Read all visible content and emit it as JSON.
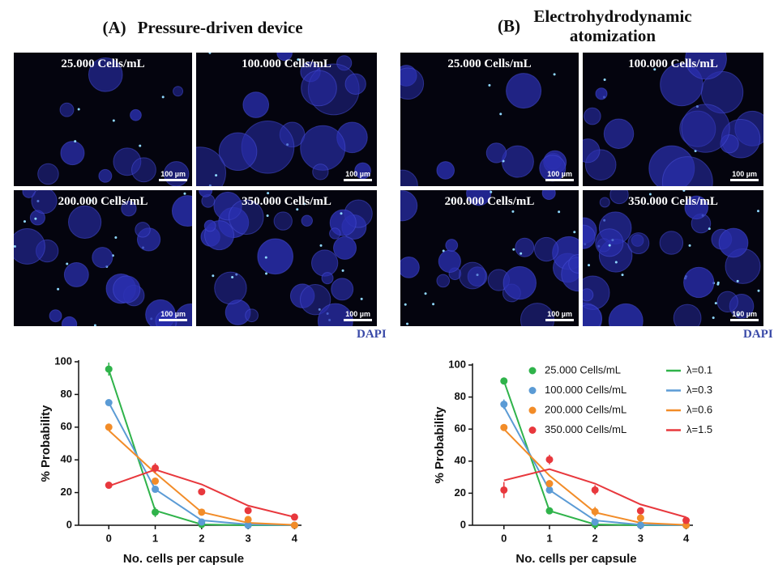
{
  "figure": {
    "panels": [
      {
        "letter": "(A)",
        "title": "Pressure-driven device",
        "images": [
          "25.000 Cells/mL",
          "100.000 Cells/mL",
          "200.000 Cells/mL",
          "350.000 Cells/mL"
        ],
        "scale_bar": "100 µm",
        "stain": "DAPI"
      },
      {
        "letter": "(B)",
        "title": "Electrohydrodynamic atomization",
        "images": [
          "25.000 Cells/mL",
          "100.000 Cells/mL",
          "200.000 Cells/mL",
          "350.000 Cells/mL"
        ],
        "scale_bar": "100 µm",
        "stain": "DAPI"
      }
    ]
  },
  "chart_data": [
    {
      "type": "scatter",
      "xlabel": "No. cells per capsule",
      "ylabel": "% Probability",
      "x": [
        0,
        1,
        2,
        3,
        4
      ],
      "xlim": [
        -0.65,
        4.15
      ],
      "xticks": [
        0,
        1,
        2,
        3,
        4
      ],
      "ylim": [
        0,
        100
      ],
      "yticks": [
        0,
        20,
        40,
        60,
        80,
        100
      ],
      "series": [
        {
          "color": "#2fb34a",
          "values": [
            95.5,
            8,
            0.5,
            0,
            0
          ],
          "errors": [
            4,
            3,
            null,
            null,
            null
          ]
        },
        {
          "color": "#5b9bd5",
          "values": [
            75,
            22,
            2,
            0,
            0
          ],
          "errors": [
            null,
            null,
            null,
            null,
            null
          ]
        },
        {
          "color": "#f28c28",
          "values": [
            60,
            27,
            8,
            3.5,
            0
          ],
          "errors": [
            null,
            null,
            null,
            null,
            null
          ]
        },
        {
          "color": "#e8383d",
          "values": [
            24.5,
            35,
            20.5,
            9,
            5
          ],
          "errors": [
            2,
            3,
            null,
            null,
            null
          ]
        }
      ],
      "fits": [
        {
          "color": "#2fb34a",
          "values": [
            95,
            9,
            0.5,
            0,
            0
          ]
        },
        {
          "color": "#5b9bd5",
          "values": [
            75,
            22,
            3,
            0.5,
            0
          ]
        },
        {
          "color": "#f28c28",
          "values": [
            58,
            32,
            8,
            1.5,
            0.2
          ]
        },
        {
          "color": "#e8383d",
          "values": [
            24,
            34,
            25,
            12,
            5
          ]
        }
      ]
    },
    {
      "type": "scatter",
      "xlabel": "No. cells per capsule",
      "ylabel": "% Probability",
      "x": [
        0,
        1,
        2,
        3,
        4
      ],
      "xlim": [
        -0.69,
        4.15
      ],
      "xticks": [
        0,
        1,
        2,
        3,
        4
      ],
      "ylim": [
        0,
        100
      ],
      "yticks": [
        0,
        20,
        40,
        60,
        80,
        100
      ],
      "series": [
        {
          "name": "25.000 Cells/mL",
          "color": "#2fb34a",
          "values": [
            90,
            9,
            0.5,
            0,
            0
          ],
          "errors": [
            null,
            null,
            null,
            null,
            null
          ]
        },
        {
          "name": "100.000 Cells/mL",
          "color": "#5b9bd5",
          "values": [
            75.5,
            22,
            2,
            0,
            0
          ],
          "errors": [
            3,
            2,
            null,
            null,
            null
          ]
        },
        {
          "name": "200.000 Cells/mL",
          "color": "#f28c28",
          "values": [
            61,
            26,
            8.5,
            4.5,
            0
          ],
          "errors": [
            null,
            null,
            3,
            null,
            null
          ]
        },
        {
          "name": "350.000 Cells/mL",
          "color": "#e8383d",
          "values": [
            22,
            41,
            22,
            9,
            3
          ],
          "errors": [
            5,
            3,
            3,
            1,
            1
          ]
        }
      ],
      "fits": [
        {
          "name": "λ=0.1",
          "color": "#2fb34a",
          "values": [
            90,
            9,
            0.5,
            0,
            0
          ]
        },
        {
          "name": "λ=0.3",
          "color": "#5b9bd5",
          "values": [
            74,
            22,
            3,
            0.3,
            0
          ]
        },
        {
          "name": "λ=0.6",
          "color": "#f28c28",
          "values": [
            60,
            31,
            8,
            1.5,
            0.2
          ]
        },
        {
          "name": "λ=1.5",
          "color": "#e8383d",
          "values": [
            28,
            35,
            26,
            13,
            5
          ]
        }
      ]
    }
  ]
}
